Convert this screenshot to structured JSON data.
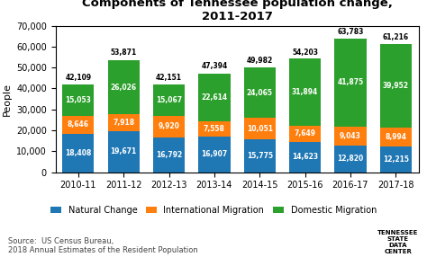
{
  "chart_data": {
    "type": "bar",
    "stacked": true,
    "data_labels": true,
    "grid": false,
    "legend": "lower center",
    "title": "Components of Tennessee population change, 2011-2017",
    "ylabel": "People",
    "categories": [
      "2010-11",
      "2011-12",
      "2012-13",
      "2013-14",
      "2014-15",
      "2015-16",
      "2016-17",
      "2017-18"
    ],
    "series": [
      {
        "name": "Natural Change",
        "values": [
          18408,
          19671,
          16792,
          16907,
          15775,
          14623,
          12820,
          12215
        ],
        "value_labels": [
          "18,408",
          "19,671",
          "16,792",
          "16,907",
          "15,775",
          "14,623",
          "12,820",
          "12,215"
        ]
      },
      {
        "name": "International Migration",
        "values": [
          8646,
          7918,
          9920,
          7558,
          10051,
          7649,
          9043,
          8994
        ],
        "value_labels": [
          "8,646",
          "7,918",
          "9,920",
          "7,558",
          "10,051",
          "7,649",
          "9,043",
          "8,994"
        ]
      },
      {
        "name": "Domestic Migration",
        "values": [
          15053,
          26026,
          15067,
          22614,
          24065,
          31894,
          41875,
          39952
        ],
        "value_labels": [
          "15,053",
          "26,026",
          "15,067",
          "22,614",
          "24,065",
          "31,894",
          "41,875",
          "39,952"
        ]
      }
    ],
    "totals": {
      "values": [
        42109,
        53871,
        42151,
        47394,
        49982,
        54203,
        63783,
        61216
      ],
      "value_labels": [
        "42,109",
        "53,871",
        "42,151",
        "47,394",
        "49,982",
        "54,203",
        "63,783",
        "61,216"
      ]
    },
    "ylim": [
      0,
      70000
    ],
    "yticks": [
      0,
      {
        "value": 10000,
        "label": "10,000"
      },
      {
        "value": 20000,
        "label": "20,000"
      },
      {
        "value": 30000,
        "label": "30,000"
      },
      {
        "value": 40000,
        "label": "40,000"
      },
      {
        "value": 50000,
        "label": "50,000"
      },
      {
        "value": 60000,
        "label": "60,000"
      },
      {
        "value": 70000,
        "label": "70,000"
      }
    ],
    "annotations": [
      "Source:  US Census Bureau,\n2018 Annual Estimates of the Resident Population",
      "TENNESSEE\nSTATE\nDATA\nCENTER"
    ]
  }
}
